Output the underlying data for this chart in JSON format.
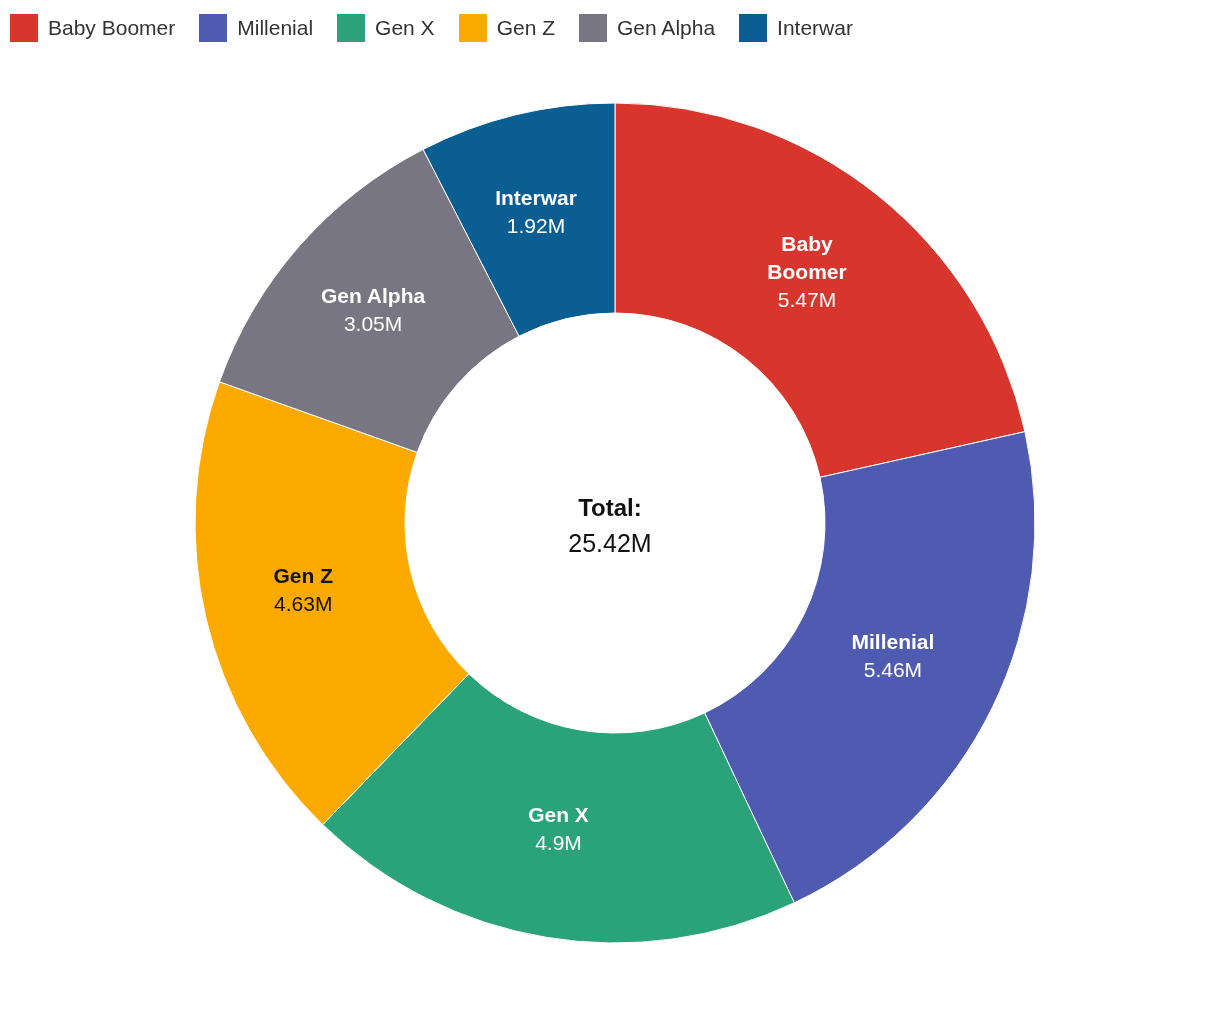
{
  "chart_data": {
    "type": "donut",
    "categories": [
      "Baby Boomer",
      "Millenial",
      "Gen X",
      "Gen Z",
      "Gen Alpha",
      "Interwar"
    ],
    "values": [
      5.47,
      5.46,
      4.9,
      4.63,
      3.05,
      1.92
    ],
    "value_labels": [
      "5.47M",
      "5.46M",
      "4.9M",
      "4.63M",
      "3.05M",
      "1.92M"
    ],
    "colors": [
      "#d8362d",
      "#4f5bb0",
      "#2aa37a",
      "#fdaa00",
      "#787682",
      "#0a5e91"
    ],
    "annotations": [
      "Total:",
      "25.42M"
    ],
    "legend": "top left"
  }
}
